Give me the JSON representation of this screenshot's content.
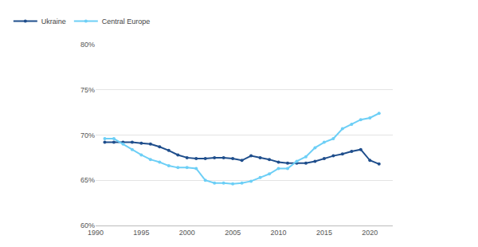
{
  "chart_data": {
    "type": "line",
    "x": [
      1991,
      1992,
      1993,
      1994,
      1995,
      1996,
      1997,
      1998,
      1999,
      2000,
      2001,
      2002,
      2003,
      2004,
      2005,
      2006,
      2007,
      2008,
      2009,
      2010,
      2011,
      2012,
      2013,
      2014,
      2015,
      2016,
      2017,
      2018,
      2019,
      2020,
      2021
    ],
    "series": [
      {
        "name": "Ukraine",
        "color": "#1f4e8c",
        "marker": "circle",
        "line_style": "solid",
        "values": [
          69.2,
          69.2,
          69.2,
          69.2,
          69.1,
          69.0,
          68.7,
          68.3,
          67.8,
          67.5,
          67.4,
          67.4,
          67.5,
          67.5,
          67.4,
          67.2,
          67.7,
          67.5,
          67.3,
          67.0,
          66.9,
          66.9,
          66.9,
          67.1,
          67.4,
          67.7,
          67.9,
          68.2,
          68.4,
          67.2,
          66.8
        ]
      },
      {
        "name": "Central Europe",
        "color": "#6dcff6",
        "marker": "circle",
        "line_style": "solid",
        "values": [
          69.6,
          69.6,
          69.0,
          68.4,
          67.8,
          67.3,
          67.0,
          66.6,
          66.4,
          66.4,
          66.3,
          65.0,
          64.7,
          64.7,
          64.6,
          64.7,
          64.9,
          65.3,
          65.7,
          66.3,
          66.3,
          67.1,
          67.6,
          68.6,
          69.2,
          69.6,
          70.7,
          71.2,
          71.7,
          71.9,
          72.4
        ]
      }
    ],
    "xlim": [
      1990,
      2022.5
    ],
    "xticks": [
      1990,
      1995,
      2000,
      2005,
      2010,
      2015,
      2020
    ],
    "ylim": [
      60,
      80
    ],
    "yticks": [
      {
        "value": 60,
        "label": "60%"
      },
      {
        "value": 65,
        "label": "65%"
      },
      {
        "value": 70,
        "label": "70%"
      },
      {
        "value": 75,
        "label": "75%"
      },
      {
        "value": 80,
        "label": "80%"
      }
    ],
    "grid": true,
    "legend": "top left"
  }
}
